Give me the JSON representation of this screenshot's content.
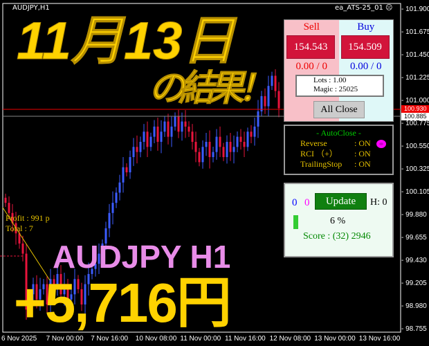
{
  "chart": {
    "symbol_label": "AUDJPY,H1",
    "ea_label": "ea_ATS-25_01",
    "ea_status_icon": "sad-face-icon",
    "bull_color": "#3b5cff",
    "bear_color": "#e8143c",
    "y_ticks": [
      "101.900",
      "101.675",
      "101.450",
      "101.225",
      "101.000",
      "100.775",
      "100.550",
      "100.325",
      "100.105",
      "99.880",
      "99.655",
      "99.430",
      "99.205",
      "98.980",
      "98.755"
    ],
    "x_ticks": [
      "6 Nov 2025",
      "7 Nov 00:00",
      "7 Nov 16:00",
      "10 Nov 08:00",
      "11 Nov 00:00",
      "11 Nov 16:00",
      "12 Nov 08:00",
      "13 Nov 00:00",
      "13 Nov 16:00"
    ],
    "bid_label": "100.930",
    "ask_label": "100.885",
    "closes": [
      100.0,
      99.9,
      99.8,
      99.7,
      99.6,
      99.5,
      98.95,
      99.1,
      99.2,
      99.05,
      99.15,
      99.2,
      99.0,
      99.25,
      99.15,
      99.3,
      99.1,
      99.2,
      99.05,
      99.1,
      99.25,
      99.15,
      99.0,
      99.2,
      99.3,
      99.35,
      99.4,
      99.5,
      99.6,
      99.75,
      99.9,
      100.0,
      100.1,
      100.2,
      100.35,
      100.3,
      100.45,
      100.55,
      100.5,
      100.6,
      100.7,
      100.55,
      100.65,
      100.75,
      100.6,
      100.7,
      100.8,
      100.65,
      100.75,
      100.85,
      100.7,
      100.8,
      100.75,
      100.7,
      100.6,
      100.5,
      100.4,
      100.55,
      100.6,
      100.45,
      100.5,
      100.65,
      100.55,
      100.45,
      100.6,
      100.5,
      100.55,
      100.65,
      100.6,
      100.55,
      100.7,
      100.65,
      100.75,
      100.9,
      101.05,
      100.95,
      101.15,
      101.25,
      101.1,
      100.93
    ],
    "profit_text": "Profit : 991 p",
    "total_text": "Total : 7"
  },
  "trade_panel": {
    "sell_label": "Sell",
    "buy_label": "Buy",
    "sell_price": "154.543",
    "buy_price": "154.509",
    "sell_position": "0.00 / 0",
    "buy_position": "0.00 / 0",
    "lots": "Lots   : 1.00",
    "magic": "Magic : 25025",
    "all_close": "All Close"
  },
  "autoclose_panel": {
    "title": "- AutoClose -",
    "rows": [
      {
        "name": "Reverse",
        "value": ": ON"
      },
      {
        "name": "RCI （+）",
        "value": ": ON"
      },
      {
        "name": "TrailingStop",
        "value": ": ON"
      }
    ]
  },
  "status_panel": {
    "count_blue": "0",
    "count_magenta": "0",
    "update_label": "Update",
    "h_label": "H: 0",
    "progress_percent": 6,
    "progress_text": "6 %",
    "score": "Score : (32) 2946"
  },
  "overlay": {
    "date": "11月13日",
    "result": "の結果！",
    "pair": "AUDJPY H1",
    "amount": "+5,716円"
  }
}
